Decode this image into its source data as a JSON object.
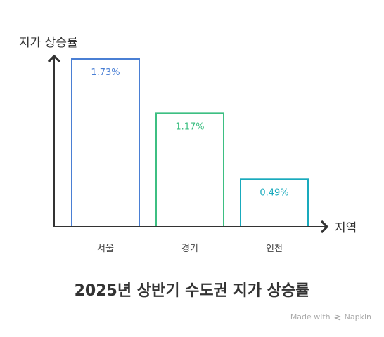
{
  "chart_data": {
    "type": "bar",
    "title": "2025년 상반기 수도권 지가 상승률",
    "ylabel": "지가 상승률",
    "xlabel": "지역",
    "categories": [
      "서울",
      "경기",
      "인천"
    ],
    "values": [
      1.73,
      1.17,
      0.49
    ],
    "value_labels": [
      "1.73%",
      "1.17%",
      "0.49%"
    ],
    "colors": [
      "#4a7fd4",
      "#3dbf82",
      "#19aabd"
    ],
    "ylim": [
      0,
      1.73
    ],
    "grid": false,
    "legend": "none"
  },
  "watermark": {
    "text": "Made with",
    "brand": "Napkin"
  }
}
